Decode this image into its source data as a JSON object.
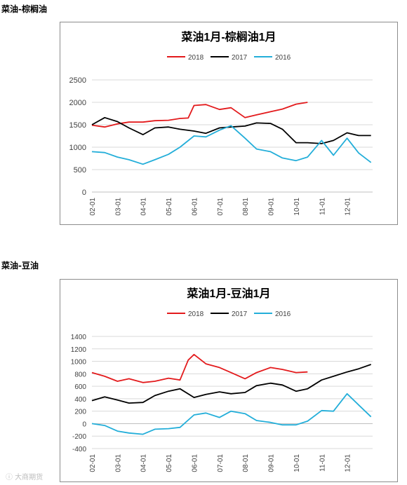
{
  "sections": [
    {
      "heading": "菜油-棕榈油"
    },
    {
      "heading": "菜油-豆油"
    }
  ],
  "watermark": "ⓘ 大商期货",
  "chart_data": [
    {
      "type": "line",
      "title": "菜油1月-棕榈油1月",
      "xlabel": "",
      "ylabel": "",
      "ylim": [
        0,
        2500
      ],
      "yticks": [
        0,
        500,
        1000,
        1500,
        2000,
        2500
      ],
      "x_ticklabels": [
        "02-01",
        "03-01",
        "04-01",
        "05-01",
        "06-01",
        "07-01",
        "08-01",
        "09-01",
        "10-01",
        "11-01",
        "12-01"
      ],
      "legend_position": "top",
      "grid": true,
      "series": [
        {
          "name": "2018",
          "color": "#e31a1c",
          "x": [
            "02-01",
            "02-15",
            "03-01",
            "03-15",
            "04-01",
            "04-15",
            "05-01",
            "05-15",
            "05-25",
            "06-01",
            "06-15",
            "07-01",
            "07-15",
            "08-01",
            "08-15",
            "09-01",
            "09-15",
            "10-01",
            "10-15"
          ],
          "y": [
            1490,
            1450,
            1520,
            1560,
            1560,
            1590,
            1600,
            1640,
            1650,
            1930,
            1950,
            1840,
            1880,
            1660,
            1720,
            1790,
            1850,
            1960,
            2000
          ]
        },
        {
          "name": "2017",
          "color": "#000000",
          "x": [
            "02-01",
            "02-15",
            "03-01",
            "03-15",
            "04-01",
            "04-15",
            "05-01",
            "05-15",
            "06-01",
            "06-15",
            "07-01",
            "07-15",
            "08-01",
            "08-15",
            "09-01",
            "09-15",
            "10-01",
            "10-15",
            "11-01",
            "11-15",
            "12-01",
            "12-15",
            "12-30"
          ],
          "y": [
            1500,
            1660,
            1570,
            1430,
            1280,
            1430,
            1450,
            1400,
            1360,
            1310,
            1430,
            1450,
            1470,
            1540,
            1530,
            1400,
            1100,
            1100,
            1080,
            1150,
            1320,
            1260,
            1260
          ]
        },
        {
          "name": "2016",
          "color": "#23aed9",
          "x": [
            "02-01",
            "02-15",
            "03-01",
            "03-15",
            "04-01",
            "04-15",
            "05-01",
            "05-15",
            "06-01",
            "06-15",
            "07-01",
            "07-15",
            "08-01",
            "08-15",
            "09-01",
            "09-15",
            "10-01",
            "10-15",
            "11-01",
            "11-15",
            "12-01",
            "12-15",
            "12-30"
          ],
          "y": [
            900,
            880,
            780,
            720,
            620,
            720,
            840,
            1000,
            1250,
            1230,
            1380,
            1480,
            1200,
            960,
            900,
            760,
            700,
            780,
            1150,
            820,
            1200,
            870,
            660
          ]
        }
      ]
    },
    {
      "type": "line",
      "title": "菜油1月-豆油1月",
      "xlabel": "",
      "ylabel": "",
      "ylim": [
        -400,
        1400
      ],
      "yticks": [
        -400,
        -200,
        0,
        200,
        400,
        600,
        800,
        1000,
        1200,
        1400
      ],
      "x_ticklabels": [
        "02-01",
        "03-01",
        "04-01",
        "05-01",
        "06-01",
        "07-01",
        "08-01",
        "09-01",
        "10-01",
        "11-01",
        "12-01"
      ],
      "legend_position": "top",
      "grid": true,
      "series": [
        {
          "name": "2018",
          "color": "#e31a1c",
          "x": [
            "02-01",
            "02-15",
            "03-01",
            "03-15",
            "04-01",
            "04-15",
            "05-01",
            "05-15",
            "05-25",
            "06-01",
            "06-15",
            "07-01",
            "07-15",
            "08-01",
            "08-15",
            "09-01",
            "09-15",
            "10-01",
            "10-15"
          ],
          "y": [
            820,
            760,
            680,
            720,
            660,
            680,
            730,
            700,
            1020,
            1110,
            960,
            900,
            820,
            720,
            820,
            900,
            870,
            820,
            830
          ]
        },
        {
          "name": "2017",
          "color": "#000000",
          "x": [
            "02-01",
            "02-15",
            "03-01",
            "03-15",
            "04-01",
            "04-15",
            "05-01",
            "05-15",
            "06-01",
            "06-15",
            "07-01",
            "07-15",
            "08-01",
            "08-15",
            "09-01",
            "09-15",
            "10-01",
            "10-15",
            "11-01",
            "11-15",
            "12-01",
            "12-15",
            "12-30"
          ],
          "y": [
            370,
            430,
            380,
            330,
            340,
            450,
            520,
            560,
            420,
            470,
            510,
            480,
            500,
            610,
            650,
            620,
            520,
            560,
            700,
            760,
            830,
            880,
            950
          ]
        },
        {
          "name": "2016",
          "color": "#23aed9",
          "x": [
            "02-01",
            "02-15",
            "03-01",
            "03-15",
            "04-01",
            "04-15",
            "05-01",
            "05-15",
            "06-01",
            "06-15",
            "07-01",
            "07-15",
            "08-01",
            "08-15",
            "09-01",
            "09-15",
            "10-01",
            "10-15",
            "11-01",
            "11-15",
            "12-01",
            "12-15",
            "12-30"
          ],
          "y": [
            0,
            -30,
            -120,
            -150,
            -170,
            -90,
            -80,
            -60,
            140,
            170,
            100,
            200,
            160,
            50,
            20,
            -20,
            -20,
            40,
            210,
            200,
            480,
            300,
            110
          ]
        }
      ]
    }
  ]
}
